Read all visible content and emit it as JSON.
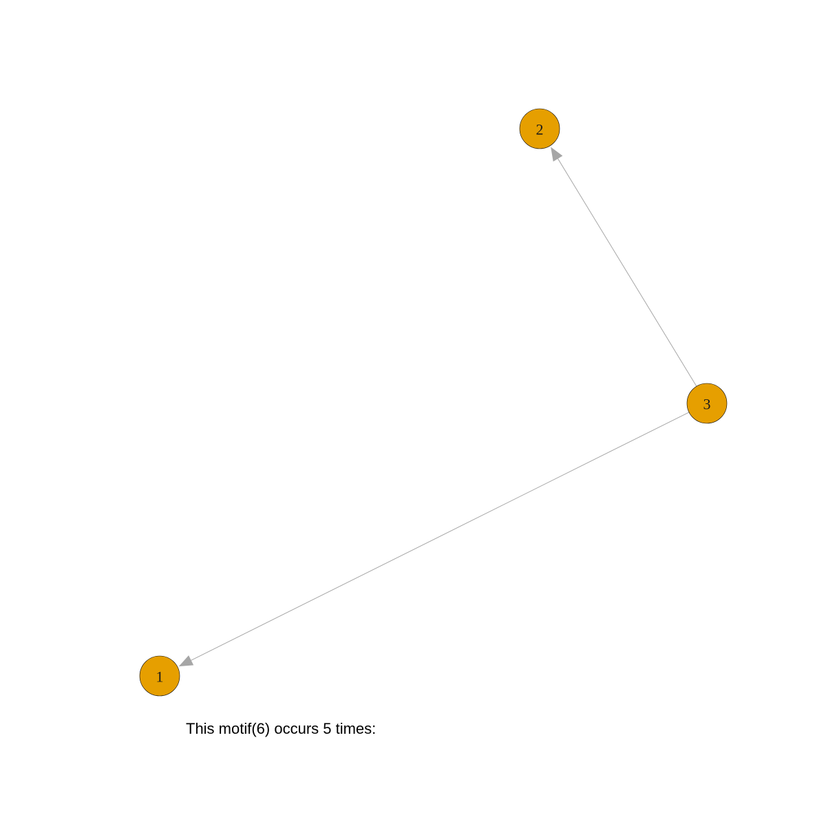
{
  "colors": {
    "node_fill": "#E69F00",
    "edge": "#A6A6A6",
    "background": "#FFFFFF"
  },
  "graph": {
    "nodes": [
      {
        "id": "1",
        "label": "1"
      },
      {
        "id": "2",
        "label": "2"
      },
      {
        "id": "3",
        "label": "3"
      }
    ],
    "edges": [
      {
        "from": "3",
        "to": "2",
        "directed": true
      },
      {
        "from": "3",
        "to": "1",
        "directed": true
      }
    ]
  },
  "caption": {
    "text": "This motif(6) occurs 5 times:"
  }
}
